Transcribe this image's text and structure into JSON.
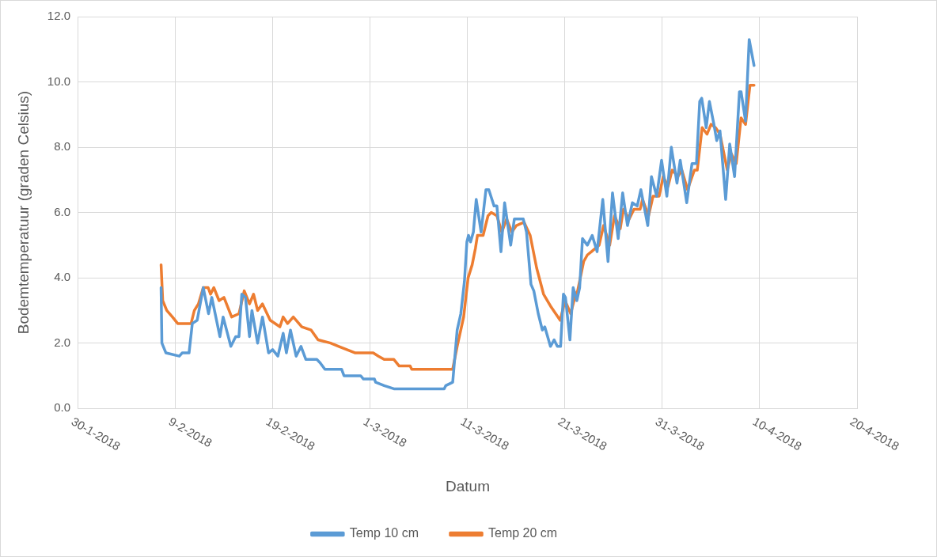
{
  "chart_data": {
    "type": "line",
    "xlabel": "Datum",
    "ylabel": "Bodemtemperatuur (graden Celsius)",
    "xlim": [
      "2018-01-30",
      "2018-04-20"
    ],
    "xticks": [
      {
        "value": "2018-01-30",
        "label": "30-1-2018"
      },
      {
        "value": "2018-02-09",
        "label": "9-2-2018"
      },
      {
        "value": "2018-02-19",
        "label": "19-2-2018"
      },
      {
        "value": "2018-03-01",
        "label": "1-3-2018"
      },
      {
        "value": "2018-03-11",
        "label": "11-3-2018"
      },
      {
        "value": "2018-03-21",
        "label": "21-3-2018"
      },
      {
        "value": "2018-03-31",
        "label": "31-3-2018"
      },
      {
        "value": "2018-04-10",
        "label": "10-4-2018"
      },
      {
        "value": "2018-04-20",
        "label": "20-4-2018"
      }
    ],
    "ylim": [
      0,
      12
    ],
    "yticks": [
      {
        "value": 0,
        "label": "0.0"
      },
      {
        "value": 2,
        "label": "2.0"
      },
      {
        "value": 4,
        "label": "4.0"
      },
      {
        "value": 6,
        "label": "6.0"
      },
      {
        "value": 8,
        "label": "8.0"
      },
      {
        "value": 10,
        "label": "10.0"
      },
      {
        "value": 12,
        "label": "12.0"
      }
    ],
    "grid": true,
    "legend": "bottom",
    "marker": "none",
    "line_style": "solid",
    "series": [
      {
        "name": "Temp 10 cm",
        "color": "#5b9bd5",
        "x": [
          "2018-02-07T12:00",
          "2018-02-07T14:00",
          "2018-02-08T00:00",
          "2018-02-09T09:00",
          "2018-02-09T16:00",
          "2018-02-10T09:00",
          "2018-02-10T17:00",
          "2018-02-11T05:00",
          "2018-02-11T20:00",
          "2018-02-12T09:00",
          "2018-02-12T17:00",
          "2018-02-13T13:00",
          "2018-02-13T21:00",
          "2018-02-14T16:00",
          "2018-02-15T04:00",
          "2018-02-15T12:00",
          "2018-02-15T19:00",
          "2018-02-16T04:00",
          "2018-02-16T14:00",
          "2018-02-16T20:00",
          "2018-02-17T10:00",
          "2018-02-17T22:00",
          "2018-02-18T13:00",
          "2018-02-18T23:00",
          "2018-02-19T12:00",
          "2018-02-20T01:00",
          "2018-02-20T09:00",
          "2018-02-20T19:00",
          "2018-02-21T09:00",
          "2018-02-21T21:00",
          "2018-02-22T09:00",
          "2018-02-23T12:00",
          "2018-02-23T20:00",
          "2018-02-24T08:00",
          "2018-02-26T01:00",
          "2018-02-26T07:00",
          "2018-02-28T00:00",
          "2018-02-28T07:00",
          "2018-03-01T10:00",
          "2018-03-01T13:00",
          "2018-03-02T10:00",
          "2018-03-03T10:00",
          "2018-03-08T14:00",
          "2018-03-08T18:00",
          "2018-03-09T11:00",
          "2018-03-09T22:00",
          "2018-03-10T07:00",
          "2018-03-10T16:00",
          "2018-03-10T22:00",
          "2018-03-11T02:00",
          "2018-03-11T07:00",
          "2018-03-11T14:00",
          "2018-03-11T21:00",
          "2018-03-12T09:00",
          "2018-03-12T21:00",
          "2018-03-13T04:00",
          "2018-03-13T17:00",
          "2018-03-14T00:00",
          "2018-03-14T10:00",
          "2018-03-14T19:00",
          "2018-03-15T10:00",
          "2018-03-15T19:00",
          "2018-03-16T17:00",
          "2018-03-17T01:00",
          "2018-03-17T12:00",
          "2018-03-17T19:00",
          "2018-03-18T06:00",
          "2018-03-18T16:00",
          "2018-03-18T22:00",
          "2018-03-19T12:00",
          "2018-03-19T21:00",
          "2018-03-20T05:00",
          "2018-03-20T13:00",
          "2018-03-20T20:00",
          "2018-03-21T01:00",
          "2018-03-21T12:00",
          "2018-03-21T20:00",
          "2018-03-22T05:00",
          "2018-03-22T12:00",
          "2018-03-22T19:00",
          "2018-03-23T07:00",
          "2018-03-23T19:00",
          "2018-03-24T07:00",
          "2018-03-24T21:00",
          "2018-03-25T10:00",
          "2018-03-25T21:00",
          "2018-03-26T11:00",
          "2018-03-26T22:00",
          "2018-03-27T10:00",
          "2018-03-27T22:00",
          "2018-03-28T10:00",
          "2018-03-28T19:00",
          "2018-03-29T12:00",
          "2018-03-29T21:00",
          "2018-03-30T10:00",
          "2018-03-30T22:00",
          "2018-03-31T11:00",
          "2018-03-31T22:00",
          "2018-04-01T12:00",
          "2018-04-01T20:00",
          "2018-04-02T12:00",
          "2018-04-03T01:00",
          "2018-04-03T12:00",
          "2018-04-03T20:00",
          "2018-04-04T01:00",
          "2018-04-04T12:00",
          "2018-04-04T20:00",
          "2018-04-05T07:00",
          "2018-04-05T14:00",
          "2018-04-05T22:00",
          "2018-04-06T12:00",
          "2018-04-06T22:00",
          "2018-04-07T10:00",
          "2018-04-07T22:00",
          "2018-04-08T02:00",
          "2018-04-08T13:00",
          "2018-04-08T22:00",
          "2018-04-09T10:00"
        ],
        "values": [
          3.7,
          2.0,
          1.7,
          1.6,
          1.7,
          1.7,
          2.6,
          2.7,
          3.7,
          2.9,
          3.4,
          2.2,
          2.8,
          1.9,
          2.2,
          2.2,
          3.5,
          3.4,
          2.2,
          3.0,
          2.0,
          2.8,
          1.7,
          1.8,
          1.6,
          2.3,
          1.7,
          2.4,
          1.6,
          1.9,
          1.5,
          1.5,
          1.4,
          1.2,
          1.2,
          1.0,
          1.0,
          0.9,
          0.9,
          0.8,
          0.7,
          0.6,
          0.6,
          0.7,
          0.8,
          2.4,
          2.9,
          3.9,
          5.1,
          5.3,
          5.1,
          5.4,
          6.4,
          5.4,
          6.7,
          6.7,
          6.2,
          6.2,
          4.8,
          6.3,
          5.0,
          5.8,
          5.8,
          5.4,
          3.8,
          3.6,
          2.9,
          2.4,
          2.5,
          1.9,
          2.1,
          1.9,
          1.9,
          3.5,
          3.4,
          2.1,
          3.7,
          3.3,
          3.7,
          5.2,
          5.0,
          5.3,
          4.8,
          6.4,
          4.5,
          6.6,
          5.2,
          6.6,
          5.6,
          6.3,
          6.2,
          6.7,
          5.6,
          7.1,
          6.5,
          7.6,
          6.5,
          8.0,
          6.9,
          7.6,
          6.3,
          7.5,
          7.5,
          9.4,
          9.5,
          8.6,
          9.4,
          8.7,
          8.2,
          8.5,
          6.4,
          8.1,
          7.1,
          9.7,
          9.7,
          8.8,
          11.3,
          10.5
        ]
      },
      {
        "name": "Temp 20 cm",
        "color": "#ed7d31",
        "x": [
          "2018-02-07T12:00",
          "2018-02-07T16:00",
          "2018-02-08T02:00",
          "2018-02-08T16:00",
          "2018-02-09T05:00",
          "2018-02-10T14:00",
          "2018-02-10T22:00",
          "2018-02-11T08:00",
          "2018-02-11T20:00",
          "2018-02-12T08:00",
          "2018-02-12T14:00",
          "2018-02-12T22:00",
          "2018-02-13T11:00",
          "2018-02-13T23:00",
          "2018-02-14T18:00",
          "2018-02-15T12:00",
          "2018-02-16T01:00",
          "2018-02-16T14:00",
          "2018-02-17T00:00",
          "2018-02-17T10:00",
          "2018-02-17T22:00",
          "2018-02-18T17:00",
          "2018-02-19T17:00",
          "2018-02-20T01:00",
          "2018-02-20T12:00",
          "2018-02-21T02:00",
          "2018-02-21T23:00",
          "2018-02-22T22:00",
          "2018-02-23T15:00",
          "2018-02-24T22:00",
          "2018-02-25T18:00",
          "2018-02-27T11:00",
          "2018-03-01T07:00",
          "2018-03-01T20:00",
          "2018-03-02T10:00",
          "2018-03-03T10:00",
          "2018-03-03T23:00",
          "2018-03-05T02:00",
          "2018-03-05T06:00",
          "2018-03-09T11:00",
          "2018-03-09T22:00",
          "2018-03-10T14:00",
          "2018-03-11T01:00",
          "2018-03-11T11:00",
          "2018-03-11T19:00",
          "2018-03-12T00:00",
          "2018-03-12T14:00",
          "2018-03-13T02:00",
          "2018-03-13T10:00",
          "2018-03-14T00:00",
          "2018-03-14T12:00",
          "2018-03-15T00:00",
          "2018-03-15T13:00",
          "2018-03-16T00:00",
          "2018-03-16T19:00",
          "2018-03-17T10:00",
          "2018-03-18T02:00",
          "2018-03-18T19:00",
          "2018-03-19T14:00",
          "2018-03-20T12:00",
          "2018-03-21T00:00",
          "2018-03-21T14:00",
          "2018-03-22T02:00",
          "2018-03-22T07:00",
          "2018-03-22T22:00",
          "2018-03-23T07:00",
          "2018-03-23T17:00",
          "2018-03-24T12:00",
          "2018-03-24T23:00",
          "2018-03-25T14:00",
          "2018-03-26T02:00",
          "2018-03-26T16:00",
          "2018-03-27T00:00",
          "2018-03-27T14:00",
          "2018-03-28T02:00",
          "2018-03-28T17:00",
          "2018-03-28T23:00",
          "2018-03-29T14:00",
          "2018-03-30T01:00",
          "2018-03-30T16:00",
          "2018-03-31T02:00",
          "2018-03-31T14:00",
          "2018-04-01T00:00",
          "2018-04-01T14:00",
          "2018-04-02T00:00",
          "2018-04-02T14:00",
          "2018-04-03T07:00",
          "2018-04-03T14:00",
          "2018-04-04T02:00",
          "2018-04-04T14:00",
          "2018-04-05T00:00",
          "2018-04-05T11:00",
          "2018-04-05T22:00",
          "2018-04-06T16:00",
          "2018-04-07T02:00",
          "2018-04-07T14:00",
          "2018-04-08T02:00",
          "2018-04-08T13:00",
          "2018-04-09T00:00",
          "2018-04-09T10:00"
        ],
        "values": [
          4.4,
          3.3,
          3.0,
          2.8,
          2.6,
          2.6,
          3.0,
          3.2,
          3.7,
          3.7,
          3.5,
          3.7,
          3.3,
          3.4,
          2.8,
          2.9,
          3.6,
          3.2,
          3.5,
          3.0,
          3.2,
          2.7,
          2.5,
          2.8,
          2.6,
          2.8,
          2.5,
          2.4,
          2.1,
          2.0,
          1.9,
          1.7,
          1.7,
          1.6,
          1.5,
          1.5,
          1.3,
          1.3,
          1.2,
          1.2,
          1.9,
          2.8,
          4.0,
          4.4,
          4.9,
          5.3,
          5.3,
          5.9,
          6.0,
          5.9,
          5.4,
          5.8,
          5.4,
          5.6,
          5.7,
          5.3,
          4.3,
          3.5,
          3.1,
          2.7,
          3.3,
          2.9,
          3.5,
          3.6,
          4.5,
          4.7,
          4.8,
          5.0,
          5.6,
          5.0,
          5.9,
          5.5,
          6.1,
          5.8,
          6.1,
          6.1,
          6.4,
          5.9,
          6.5,
          6.5,
          7.1,
          6.8,
          7.3,
          7.1,
          7.3,
          6.7,
          7.3,
          7.3,
          8.6,
          8.4,
          8.7,
          8.6,
          8.4,
          7.3,
          7.8,
          7.5,
          8.9,
          8.7,
          9.9,
          9.9
        ]
      }
    ]
  }
}
